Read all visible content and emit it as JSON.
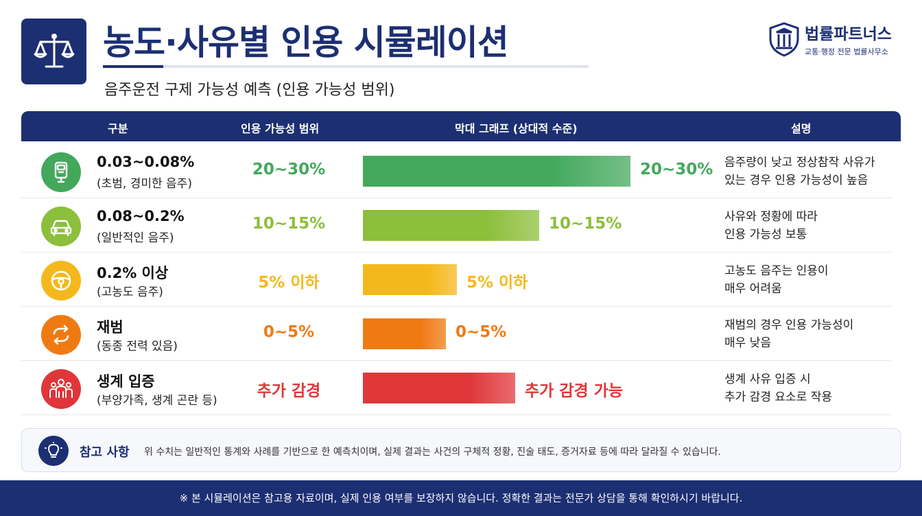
{
  "header": {
    "title": "농도·사유별 인용 시뮬레이션",
    "subtitle": "음주운전 구제 가능성 예측 (인용 가능성 범위)",
    "logo_icon": "scales-icon"
  },
  "brand": {
    "name": "법률파트너스",
    "tagline": "교통·행정 전문 법률사무소",
    "icon": "pillar-shield-icon"
  },
  "table": {
    "columns": [
      "구분",
      "인용 가능성 범위",
      "막대 그래프 (상대적 수준)",
      "설명"
    ],
    "rows": [
      {
        "icon": "breathalyzer-icon",
        "color": "#43a85c",
        "category": "0.03~0.08%",
        "category_sub": "(초범, 경미한 음주)",
        "range": "20~30%",
        "bar_level": 1.0,
        "bar_label": "20~30%",
        "desc_line1": "음주량이 낮고 정상참작 사유가",
        "desc_line2": "있는 경우 인용 가능성이 높음"
      },
      {
        "icon": "car-icon",
        "color": "#8cbf3a",
        "category": "0.08~0.2%",
        "category_sub": "(일반적인 음주)",
        "range": "10~15%",
        "bar_level": 0.66,
        "bar_label": "10~15%",
        "desc_line1": "사유와 정황에 따라",
        "desc_line2": "인용 가능성 보통"
      },
      {
        "icon": "steering-wheel-icon",
        "color": "#f5b81c",
        "category": "0.2% 이상",
        "category_sub": "(고농도 음주)",
        "range": "5% 이하",
        "bar_level": 0.35,
        "bar_label": "5% 이하",
        "desc_line1": "고농도 음주는 인용이",
        "desc_line2": "매우 어려움"
      },
      {
        "icon": "repeat-icon",
        "color": "#f07a12",
        "category": "재범",
        "category_sub": "(동종 전력 있음)",
        "range": "0~5%",
        "bar_level": 0.31,
        "bar_label": "0~5%",
        "desc_line1": "재범의 경우 인용 가능성이",
        "desc_line2": "매우 낮음"
      },
      {
        "icon": "family-icon",
        "color": "#e0363a",
        "category": "생계 입증",
        "category_sub": "(부양가족, 생계 곤란 등)",
        "range": "추가 감경",
        "bar_level": 0.57,
        "bar_label": "추가 감경 가능",
        "desc_line1": "생계 사유 입증 시",
        "desc_line2": "추가 감경 요소로 작용"
      }
    ]
  },
  "note": {
    "icon": "lightbulb-icon",
    "title": "참고 사항",
    "text": "위 수치는 일반적인 통계와 사례를 기반으로 한 예측치이며, 실제 결과는 사건의 구체적 정황, 진술 태도, 증거자료 등에 따라 달라질 수 있습니다."
  },
  "footer": {
    "text": "※ 본 시뮬레이션은 참고용 자료이며, 실제 인용 여부를 보장하지 않습니다. 정확한 결과는 전문가 상담을 통해 확인하시기 바랍니다."
  }
}
